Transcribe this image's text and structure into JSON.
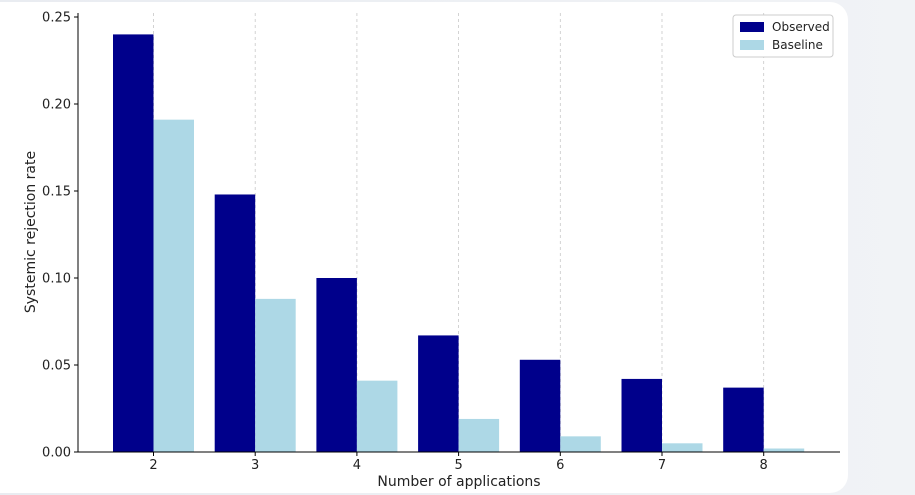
{
  "chart_data": {
    "type": "bar",
    "title": "",
    "xlabel": "Number of applications",
    "ylabel": "Systemic rejection rate",
    "categories": [
      "2",
      "3",
      "4",
      "5",
      "6",
      "7",
      "8"
    ],
    "ylim": [
      0,
      0.25
    ],
    "yticks": [
      "0.00",
      "0.05",
      "0.10",
      "0.15",
      "0.20",
      "0.25"
    ],
    "grid": "vertical dashed at category centers",
    "legend_position": "top-right",
    "series": [
      {
        "name": "Observed",
        "color": "#00008b",
        "values": [
          0.24,
          0.148,
          0.1,
          0.067,
          0.053,
          0.042,
          0.037
        ]
      },
      {
        "name": "Baseline",
        "color": "#add8e6",
        "values": [
          0.191,
          0.088,
          0.041,
          0.019,
          0.009,
          0.005,
          0.002
        ]
      }
    ]
  }
}
